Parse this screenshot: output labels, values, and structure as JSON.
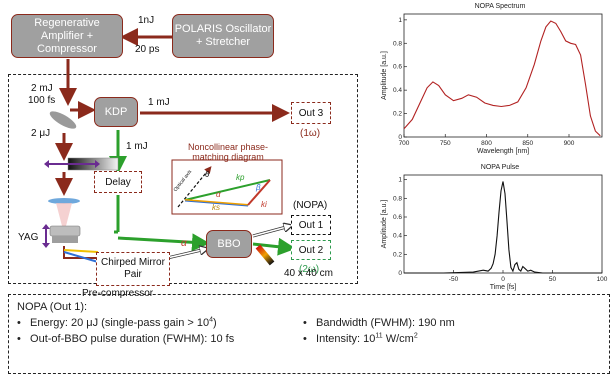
{
  "diagram": {
    "boxes": {
      "regen_amp": "Regenerative Amplifier + Compressor",
      "polaris": "POLARIS Oscillator + Stretcher",
      "kdp": "KDP",
      "bbo": "BBO",
      "delay": "Delay",
      "chirped": "Chirped Mirror Pair",
      "out1": "Out 1",
      "out2": "Out 2",
      "out3": "Out 3"
    },
    "labels": {
      "nj": "1nJ",
      "ps": "20 ps",
      "mj2": "2 mJ",
      "fs100": "100 fs",
      "mj1_right": "1 mJ",
      "mj1_down": "1 mJ",
      "uj2": "2 μJ",
      "yag": "YAG",
      "nopa": "(NOPA)",
      "out3_sub": "(1ω)",
      "out2_sub": "(2ω)",
      "precompressor": "Pre-compressor",
      "size": "40 x 40 cm",
      "alpha": "α"
    },
    "inset": {
      "title": "Noncollinear phase-matching diagram",
      "optical_axis": "Optical axis",
      "theta": "θ",
      "alpha": "α",
      "beta": "β",
      "kp": "kp",
      "ks": "ks",
      "ki": "ki"
    }
  },
  "colors": {
    "arrow_red": "#8b2a1c",
    "arrow_green": "#2ca02c",
    "out1_border": "#111111",
    "out2_border": "#2e9b4e",
    "out3_border": "#8b2a1c",
    "accent_purple": "#6a2c91",
    "spectrum_line": "#b22222",
    "pulse_line": "#111111"
  },
  "chart_data": [
    {
      "type": "line",
      "title": "NOPA Spectrum",
      "xlabel": "Wavelength [nm]",
      "ylabel": "Amplitude [a.u.]",
      "xlim": [
        700,
        940
      ],
      "ylim": [
        0,
        1.05
      ],
      "xticks": [
        700,
        750,
        800,
        850,
        900
      ],
      "yticks": [
        0,
        0.2,
        0.4,
        0.6,
        0.8,
        1
      ],
      "x": [
        700,
        710,
        720,
        728,
        735,
        742,
        750,
        760,
        770,
        778,
        788,
        798,
        808,
        818,
        828,
        838,
        848,
        858,
        866,
        872,
        878,
        884,
        890,
        896,
        902,
        908,
        914,
        920,
        926,
        932,
        938
      ],
      "y": [
        0.07,
        0.15,
        0.3,
        0.42,
        0.47,
        0.44,
        0.36,
        0.31,
        0.33,
        0.36,
        0.34,
        0.29,
        0.27,
        0.26,
        0.27,
        0.3,
        0.42,
        0.62,
        0.82,
        0.94,
        0.99,
        0.97,
        0.9,
        0.82,
        0.8,
        0.79,
        0.7,
        0.45,
        0.18,
        0.05,
        0.01
      ]
    },
    {
      "type": "line",
      "title": "NOPA Pulse",
      "xlabel": "Time [fs]",
      "ylabel": "Amplitude [a.u.]",
      "xlim": [
        -100,
        100
      ],
      "ylim": [
        0,
        1.05
      ],
      "xticks": [
        -50,
        0,
        50,
        100
      ],
      "yticks": [
        0,
        0.2,
        0.4,
        0.6,
        0.8,
        1
      ],
      "x": [
        -100,
        -60,
        -30,
        -20,
        -15,
        -12,
        -10,
        -8,
        -6,
        -4,
        -2,
        0,
        2,
        4,
        6,
        8,
        10,
        12,
        14,
        16,
        18,
        20,
        22,
        25,
        28,
        32,
        40,
        60,
        100
      ],
      "y": [
        0,
        0,
        0.01,
        0.03,
        0.02,
        0.05,
        0.1,
        0.2,
        0.4,
        0.65,
        0.88,
        0.98,
        0.85,
        0.55,
        0.25,
        0.06,
        0.02,
        0.09,
        0.11,
        0.04,
        0.02,
        0.07,
        0.05,
        0.02,
        0.03,
        0.01,
        0.0,
        0.0,
        0.0
      ]
    }
  ],
  "info": {
    "title": "NOPA (Out 1):",
    "energy": "Energy: 20 μJ (single-pass gain > 10",
    "energy_sup": "4",
    "energy_end": ")",
    "bandwidth": "Bandwidth (FWHM): 190 nm",
    "duration": "Out-of-BBO pulse duration (FWHM): 10 fs",
    "intensity": "Intensity: 10",
    "intensity_sup": "11",
    "intensity_unit": " W/cm",
    "intensity_unit_sup": "2",
    "bullet": "•"
  }
}
